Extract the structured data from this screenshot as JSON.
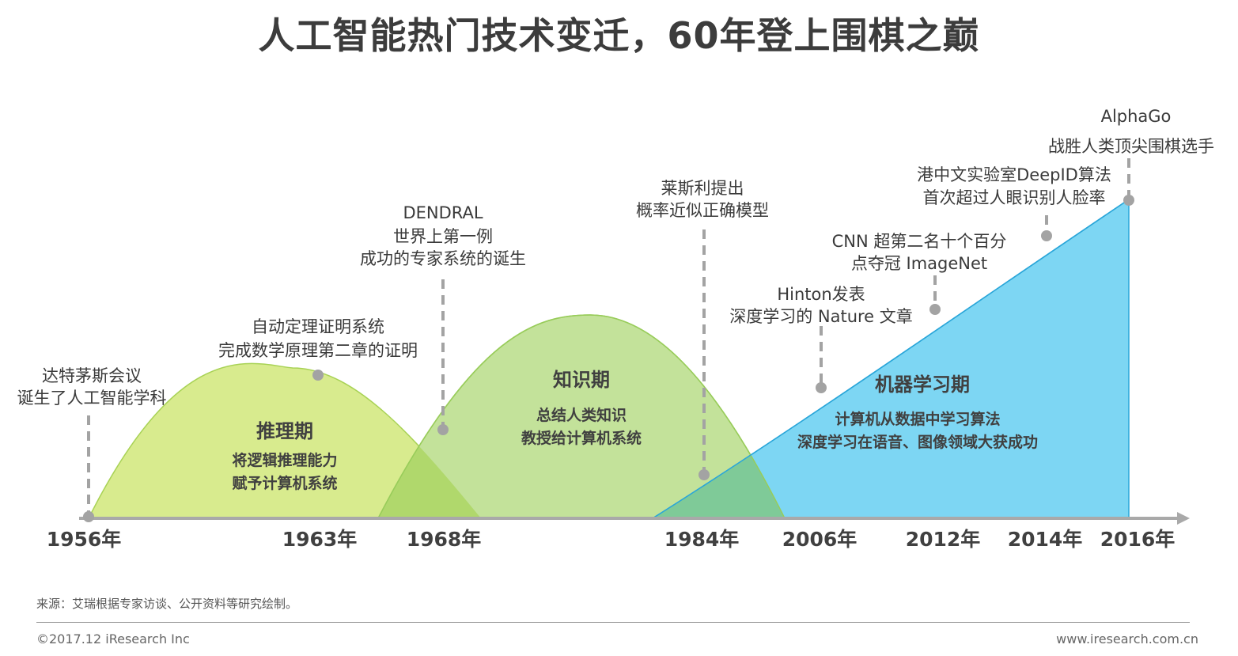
{
  "title": "人工智能热门技术变迁，60年登上围棋之巅",
  "colors": {
    "phase1": "#d8eb8e",
    "phase2": "#c3e29a",
    "phase3": "#7dd6f3",
    "overlap12": "#b0d86c",
    "overlap23": "#7fca98",
    "axis": "#a9a9a9",
    "dot": "#a3a3a3"
  },
  "phases": [
    {
      "title": "推理期",
      "desc": [
        "将逻辑推理能力",
        "赋予计算机系统"
      ]
    },
    {
      "title": "知识期",
      "desc": [
        "总结人类知识",
        "教授给计算机系统"
      ]
    },
    {
      "title": "机器学习期",
      "desc": [
        "计算机从数据中学习算法",
        "深度学习在语音、图像领域大获成功"
      ]
    }
  ],
  "years": [
    "1956年",
    "1963年",
    "1968年",
    "1984年",
    "2006年",
    "2012年",
    "2014年",
    "2016年"
  ],
  "milestones": [
    {
      "lines": [
        "达特茅斯会议",
        "诞生了人工智能学科"
      ]
    },
    {
      "lines": [
        "自动定理证明系统",
        "完成数学原理第二章的证明"
      ]
    },
    {
      "lines": [
        "DENDRAL",
        "世界上第一例",
        "成功的专家系统的诞生"
      ]
    },
    {
      "lines": [
        "莱斯利提出",
        "概率近似正确模型"
      ]
    },
    {
      "lines": [
        "Hinton发表",
        "深度学习的 Nature 文章"
      ]
    },
    {
      "lines": [
        "CNN 超第二名十个百分",
        "点夺冠 ImageNet"
      ]
    },
    {
      "lines": [
        "港中文实验室DeepID算法",
        "首次超过人眼识别人脸率"
      ]
    },
    {
      "lines": [
        "AlphaGo",
        "战胜人类顶尖围棋选手"
      ]
    }
  ],
  "source": "来源：艾瑞根据专家访谈、公开资料等研究绘制。",
  "copyright": "©2017.12 iResearch Inc",
  "website": "www.iresearch.com.cn"
}
